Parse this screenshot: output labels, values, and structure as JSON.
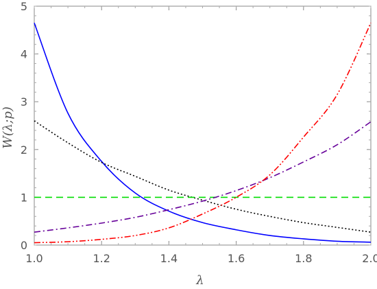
{
  "chart_data": {
    "type": "line",
    "xlabel": "λ",
    "ylabel": "W(λ;p)",
    "xlim": [
      1.0,
      2.0
    ],
    "ylim": [
      0,
      5
    ],
    "x_ticks": [
      "1.0",
      "1.2",
      "1.4",
      "1.6",
      "1.8",
      "2.0"
    ],
    "y_ticks": [
      "0",
      "1",
      "2",
      "3",
      "4",
      "5"
    ],
    "grid": false,
    "legend": "none",
    "x": [
      1.0,
      1.1,
      1.2,
      1.3,
      1.4,
      1.5,
      1.6,
      1.7,
      1.8,
      1.9,
      2.0
    ],
    "series": [
      {
        "color": "#0000ff",
        "style": "solid",
        "values": [
          4.65,
          2.76,
          1.75,
          1.09,
          0.71,
          0.47,
          0.32,
          0.2,
          0.13,
          0.08,
          0.06
        ]
      },
      {
        "color": "#000000",
        "style": "dotted",
        "values": [
          2.6,
          2.14,
          1.73,
          1.44,
          1.15,
          0.94,
          0.75,
          0.6,
          0.47,
          0.37,
          0.27
        ]
      },
      {
        "color": "#00dd00",
        "style": "dashed",
        "values": [
          1.0,
          1.0,
          1.0,
          1.0,
          1.0,
          1.0,
          1.0,
          1.0,
          1.0,
          1.0,
          1.0
        ]
      },
      {
        "color": "#660099",
        "style": "dashdot",
        "values": [
          0.27,
          0.36,
          0.46,
          0.58,
          0.74,
          0.92,
          1.14,
          1.41,
          1.74,
          2.1,
          2.58
        ]
      },
      {
        "color": "#ff0000",
        "style": "dashdotdot",
        "values": [
          0.05,
          0.07,
          0.12,
          0.2,
          0.36,
          0.65,
          1.0,
          1.47,
          2.26,
          3.15,
          4.65
        ]
      }
    ]
  }
}
